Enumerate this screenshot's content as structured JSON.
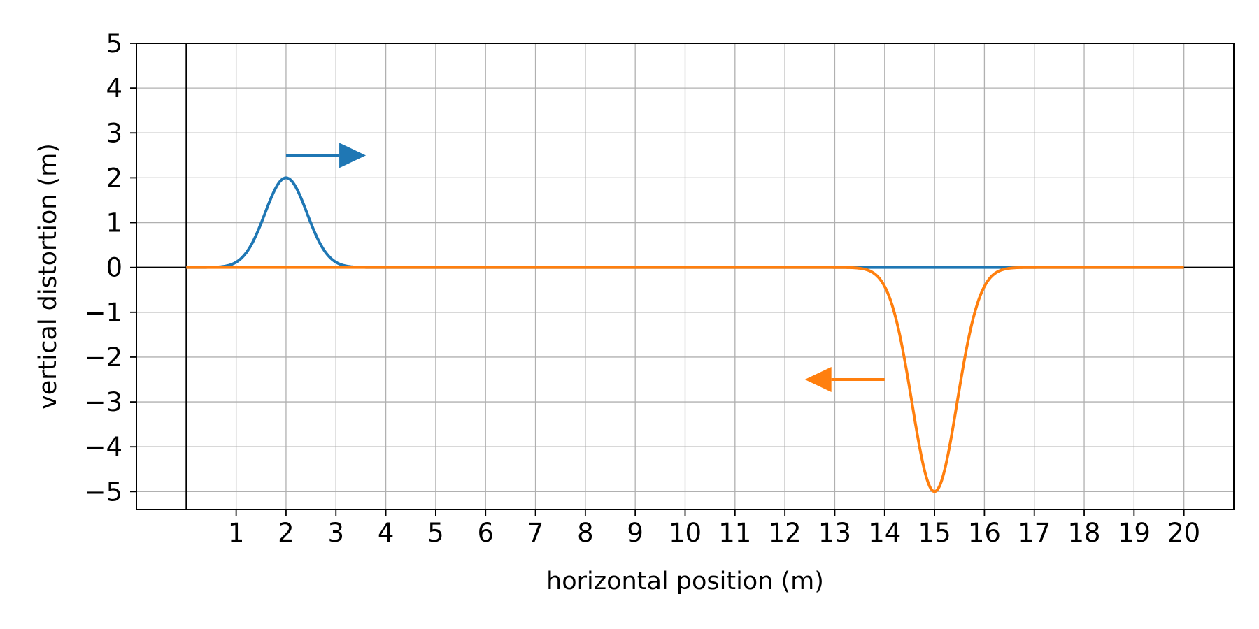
{
  "chart_data": {
    "type": "line",
    "xlabel": "horizontal position (m)",
    "ylabel": "vertical distortion (m)",
    "xlim": [
      -1,
      21
    ],
    "ylim": [
      -5.4,
      5
    ],
    "xticks": [
      1,
      2,
      3,
      4,
      5,
      6,
      7,
      8,
      9,
      10,
      11,
      12,
      13,
      14,
      15,
      16,
      17,
      18,
      19,
      20
    ],
    "yticks": [
      5,
      4,
      3,
      2,
      1,
      0,
      -1,
      -2,
      -3,
      -4,
      -5
    ],
    "grid": true,
    "series": [
      {
        "color": "#1f77b4",
        "shape": "gaussian pulse",
        "center": 2,
        "amplitude": 2,
        "sigma": 0.42,
        "x_range": [
          0,
          20
        ],
        "direction": "right",
        "arrow": {
          "from": [
            2,
            2.5
          ],
          "to": [
            3.6,
            2.5
          ]
        }
      },
      {
        "color": "#ff7f0e",
        "shape": "gaussian pulse",
        "center": 15,
        "amplitude": -5,
        "sigma": 0.45,
        "x_range": [
          0,
          20
        ],
        "direction": "left",
        "arrow": {
          "from": [
            14,
            -2.5
          ],
          "to": [
            12.4,
            -2.5
          ]
        }
      }
    ]
  }
}
